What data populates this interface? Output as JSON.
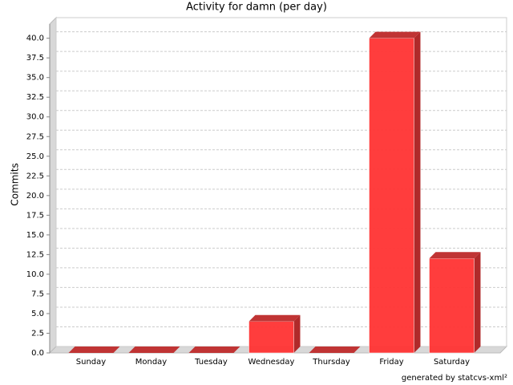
{
  "chart_data": {
    "type": "bar3d",
    "title": "Activity for damn (per day)",
    "ylabel": "Commits",
    "footer": "generated by statcvs-xml²",
    "categories": [
      "Sunday",
      "Monday",
      "Tuesday",
      "Wednesday",
      "Thursday",
      "Friday",
      "Saturday"
    ],
    "values": [
      0,
      0,
      0,
      4,
      0,
      40,
      12
    ],
    "color": "#ff3333",
    "ylim": [
      0,
      41.8
    ],
    "yticks": [
      {
        "value": 0,
        "label": "0.0"
      },
      2.5,
      {
        "value": 5,
        "label": "5.0"
      },
      7.5,
      {
        "value": 10,
        "label": "10.0"
      },
      12.5,
      {
        "value": 15,
        "label": "15.0"
      },
      17.5,
      {
        "value": 20,
        "label": "20.0"
      },
      22.5,
      {
        "value": 25,
        "label": "25.0"
      },
      27.5,
      {
        "value": 30,
        "label": "30.0"
      },
      32.5,
      {
        "value": 35,
        "label": "35.0"
      },
      37.5,
      {
        "value": 40,
        "label": "40.0"
      }
    ],
    "grid": true
  }
}
